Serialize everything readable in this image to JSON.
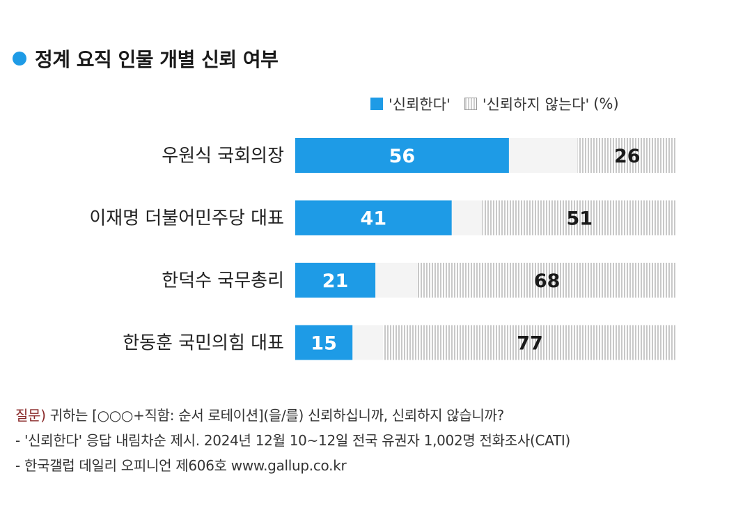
{
  "title": "정계 요직 인물 개별 신뢰 여부",
  "colors": {
    "accent": "#1e9be6",
    "trust": "#1e9be6",
    "distrust_stripe": "#c8c8c8",
    "neutral_gap": "#f4f4f4",
    "question_label": "#8a2a2a"
  },
  "legend": {
    "trust_label": "'신뢰한다'",
    "distrust_label": "'신뢰하지 않는다'",
    "unit": "(%)"
  },
  "chart_data": {
    "type": "bar",
    "orientation": "horizontal",
    "stacked": true,
    "categories": [
      "우원식 국회의장",
      "이재명 더불어민주당 대표",
      "한덕수 국무총리",
      "한동훈 국민의힘 대표"
    ],
    "series": [
      {
        "name": "'신뢰한다'",
        "values": [
          56,
          41,
          21,
          15
        ]
      },
      {
        "name": "'신뢰하지 않는다'",
        "values": [
          26,
          51,
          68,
          77
        ]
      }
    ],
    "xlim": [
      0,
      100
    ],
    "unit": "(%)",
    "legend_position": "top-right",
    "grid": false
  },
  "notes": {
    "question_label": "질문)",
    "question_text": " 귀하는 [○○○+직함: 순서 로테이션](을/를) 신뢰하십니까, 신뢰하지 않습니까?",
    "note1": "- '신뢰한다' 응답 내림차순 제시. 2024년 12월 10~12일 전국 유권자 1,002명 전화조사(CATI)",
    "note2": "- 한국갤럽 데일리 오피니언 제606호 www.gallup.co.kr"
  }
}
